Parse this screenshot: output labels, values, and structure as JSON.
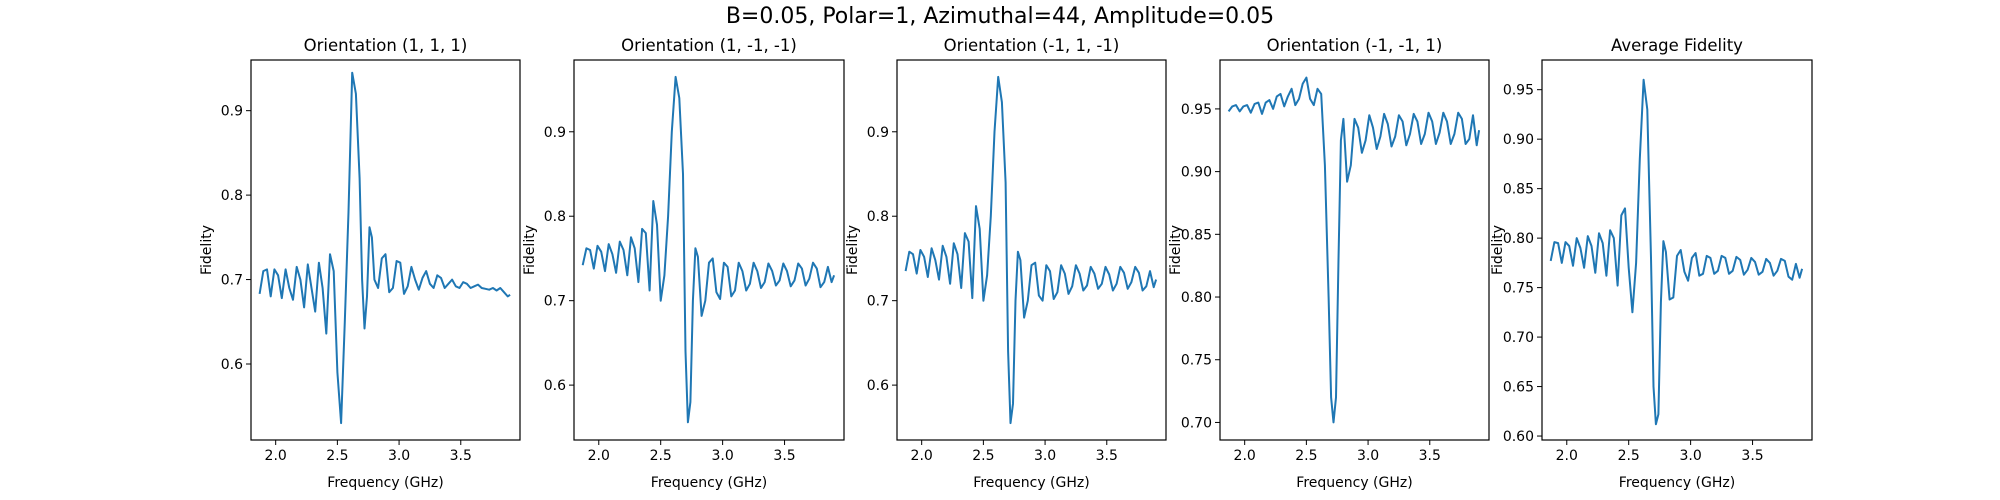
{
  "figure": {
    "title": "B=0.05, Polar=1, Azimuthal=44, Amplitude=0.05"
  },
  "chart_data": [
    {
      "type": "line",
      "title": "Orientation (1, 1, 1)",
      "xlabel": "Frequency (GHz)",
      "ylabel": "Fidelity",
      "xlim": [
        1.8,
        3.98
      ],
      "ylim": [
        0.51,
        0.96
      ],
      "xticks": [
        "2.0",
        "2.5",
        "3.0",
        "3.5"
      ],
      "yticks": [
        "0.6",
        "0.7",
        "0.8",
        "0.9"
      ],
      "color": "#1f77b4",
      "series": [
        {
          "x": [
            1.87,
            1.9,
            1.93,
            1.96,
            1.99,
            2.02,
            2.05,
            2.08,
            2.11,
            2.14,
            2.17,
            2.2,
            2.23,
            2.26,
            2.29,
            2.32,
            2.35,
            2.38,
            2.41,
            2.44,
            2.47,
            2.5,
            2.53,
            2.56,
            2.59,
            2.62,
            2.65,
            2.68,
            2.7,
            2.72,
            2.74,
            2.76,
            2.78,
            2.8,
            2.83,
            2.86,
            2.89,
            2.92,
            2.95,
            2.98,
            3.01,
            3.04,
            3.07,
            3.1,
            3.13,
            3.16,
            3.19,
            3.22,
            3.25,
            3.28,
            3.31,
            3.34,
            3.37,
            3.4,
            3.43,
            3.46,
            3.49,
            3.52,
            3.55,
            3.58,
            3.61,
            3.64,
            3.67,
            3.7,
            3.73,
            3.76,
            3.79,
            3.82,
            3.85,
            3.88,
            3.9
          ],
          "y": [
            0.683,
            0.71,
            0.712,
            0.68,
            0.712,
            0.705,
            0.678,
            0.712,
            0.69,
            0.676,
            0.715,
            0.7,
            0.667,
            0.718,
            0.69,
            0.662,
            0.72,
            0.69,
            0.636,
            0.73,
            0.71,
            0.59,
            0.53,
            0.65,
            0.78,
            0.945,
            0.92,
            0.82,
            0.7,
            0.642,
            0.68,
            0.762,
            0.75,
            0.7,
            0.69,
            0.725,
            0.73,
            0.685,
            0.69,
            0.722,
            0.72,
            0.683,
            0.692,
            0.715,
            0.7,
            0.688,
            0.702,
            0.71,
            0.695,
            0.69,
            0.705,
            0.702,
            0.69,
            0.695,
            0.7,
            0.692,
            0.69,
            0.697,
            0.695,
            0.69,
            0.692,
            0.694,
            0.69,
            0.689,
            0.688,
            0.69,
            0.687,
            0.69,
            0.685,
            0.68,
            0.682
          ]
        }
      ]
    },
    {
      "type": "line",
      "title": "Orientation (1, -1, -1)",
      "xlabel": "Frequency (GHz)",
      "ylabel": "Fidelity",
      "xlim": [
        1.8,
        3.98
      ],
      "ylim": [
        0.535,
        0.985
      ],
      "xticks": [
        "2.0",
        "2.5",
        "3.0",
        "3.5"
      ],
      "yticks": [
        "0.6",
        "0.7",
        "0.8",
        "0.9"
      ],
      "color": "#1f77b4",
      "series": [
        {
          "x": [
            1.87,
            1.9,
            1.93,
            1.96,
            1.99,
            2.02,
            2.05,
            2.08,
            2.11,
            2.14,
            2.17,
            2.2,
            2.23,
            2.26,
            2.29,
            2.32,
            2.35,
            2.38,
            2.41,
            2.44,
            2.47,
            2.5,
            2.53,
            2.56,
            2.59,
            2.62,
            2.65,
            2.68,
            2.7,
            2.72,
            2.74,
            2.76,
            2.78,
            2.8,
            2.83,
            2.86,
            2.89,
            2.92,
            2.95,
            2.98,
            3.01,
            3.04,
            3.07,
            3.1,
            3.13,
            3.16,
            3.19,
            3.22,
            3.25,
            3.28,
            3.31,
            3.34,
            3.37,
            3.4,
            3.43,
            3.46,
            3.49,
            3.52,
            3.55,
            3.58,
            3.61,
            3.64,
            3.67,
            3.7,
            3.73,
            3.76,
            3.79,
            3.82,
            3.85,
            3.88,
            3.9
          ],
          "y": [
            0.742,
            0.762,
            0.76,
            0.738,
            0.765,
            0.758,
            0.735,
            0.767,
            0.755,
            0.733,
            0.77,
            0.76,
            0.73,
            0.775,
            0.762,
            0.722,
            0.785,
            0.78,
            0.712,
            0.818,
            0.79,
            0.7,
            0.73,
            0.8,
            0.9,
            0.965,
            0.94,
            0.85,
            0.64,
            0.556,
            0.58,
            0.7,
            0.762,
            0.752,
            0.682,
            0.7,
            0.745,
            0.75,
            0.71,
            0.702,
            0.745,
            0.74,
            0.705,
            0.712,
            0.745,
            0.735,
            0.712,
            0.72,
            0.745,
            0.735,
            0.715,
            0.722,
            0.744,
            0.735,
            0.718,
            0.724,
            0.744,
            0.735,
            0.717,
            0.724,
            0.744,
            0.738,
            0.718,
            0.726,
            0.745,
            0.738,
            0.716,
            0.722,
            0.74,
            0.722,
            0.73
          ]
        }
      ]
    },
    {
      "type": "line",
      "title": "Orientation (-1, 1, -1)",
      "xlabel": "Frequency (GHz)",
      "ylabel": "Fidelity",
      "xlim": [
        1.8,
        3.98
      ],
      "ylim": [
        0.535,
        0.985
      ],
      "xticks": [
        "2.0",
        "2.5",
        "3.0",
        "3.5"
      ],
      "yticks": [
        "0.6",
        "0.7",
        "0.8",
        "0.9"
      ],
      "color": "#1f77b4",
      "series": [
        {
          "x": [
            1.87,
            1.9,
            1.93,
            1.96,
            1.99,
            2.02,
            2.05,
            2.08,
            2.11,
            2.14,
            2.17,
            2.2,
            2.23,
            2.26,
            2.29,
            2.32,
            2.35,
            2.38,
            2.41,
            2.44,
            2.47,
            2.5,
            2.53,
            2.56,
            2.59,
            2.62,
            2.65,
            2.68,
            2.7,
            2.72,
            2.74,
            2.76,
            2.78,
            2.8,
            2.83,
            2.86,
            2.89,
            2.92,
            2.95,
            2.98,
            3.01,
            3.04,
            3.07,
            3.1,
            3.13,
            3.16,
            3.19,
            3.22,
            3.25,
            3.28,
            3.31,
            3.34,
            3.37,
            3.4,
            3.43,
            3.46,
            3.49,
            3.52,
            3.55,
            3.58,
            3.61,
            3.64,
            3.67,
            3.7,
            3.73,
            3.76,
            3.79,
            3.82,
            3.85,
            3.88,
            3.9
          ],
          "y": [
            0.735,
            0.758,
            0.755,
            0.732,
            0.76,
            0.752,
            0.728,
            0.762,
            0.748,
            0.725,
            0.765,
            0.752,
            0.72,
            0.768,
            0.755,
            0.715,
            0.78,
            0.77,
            0.703,
            0.812,
            0.785,
            0.7,
            0.73,
            0.8,
            0.9,
            0.965,
            0.935,
            0.84,
            0.64,
            0.555,
            0.578,
            0.7,
            0.758,
            0.748,
            0.68,
            0.7,
            0.742,
            0.745,
            0.706,
            0.7,
            0.742,
            0.735,
            0.702,
            0.71,
            0.742,
            0.732,
            0.708,
            0.717,
            0.742,
            0.732,
            0.712,
            0.718,
            0.74,
            0.732,
            0.714,
            0.72,
            0.74,
            0.731,
            0.712,
            0.72,
            0.74,
            0.733,
            0.714,
            0.722,
            0.74,
            0.733,
            0.712,
            0.717,
            0.735,
            0.716,
            0.725
          ]
        }
      ]
    },
    {
      "type": "line",
      "title": "Orientation (-1, -1, 1)",
      "xlabel": "Frequency (GHz)",
      "ylabel": "Fidelity",
      "xlim": [
        1.8,
        3.98
      ],
      "ylim": [
        0.686,
        0.989
      ],
      "xticks": [
        "2.0",
        "2.5",
        "3.0",
        "3.5"
      ],
      "yticks": [
        "0.70",
        "0.75",
        "0.80",
        "0.85",
        "0.90",
        "0.95"
      ],
      "color": "#1f77b4",
      "series": [
        {
          "x": [
            1.87,
            1.9,
            1.93,
            1.96,
            1.99,
            2.02,
            2.05,
            2.08,
            2.11,
            2.14,
            2.17,
            2.2,
            2.23,
            2.26,
            2.29,
            2.32,
            2.35,
            2.38,
            2.41,
            2.44,
            2.47,
            2.5,
            2.53,
            2.56,
            2.59,
            2.62,
            2.65,
            2.68,
            2.7,
            2.72,
            2.74,
            2.76,
            2.78,
            2.8,
            2.83,
            2.86,
            2.89,
            2.92,
            2.95,
            2.98,
            3.01,
            3.04,
            3.07,
            3.1,
            3.13,
            3.16,
            3.19,
            3.22,
            3.25,
            3.28,
            3.31,
            3.34,
            3.37,
            3.4,
            3.43,
            3.46,
            3.49,
            3.52,
            3.55,
            3.58,
            3.61,
            3.64,
            3.67,
            3.7,
            3.73,
            3.76,
            3.79,
            3.82,
            3.85,
            3.88,
            3.9
          ],
          "y": [
            0.948,
            0.952,
            0.953,
            0.948,
            0.952,
            0.953,
            0.947,
            0.954,
            0.955,
            0.946,
            0.955,
            0.957,
            0.95,
            0.96,
            0.962,
            0.952,
            0.96,
            0.966,
            0.953,
            0.958,
            0.97,
            0.975,
            0.958,
            0.953,
            0.966,
            0.962,
            0.905,
            0.8,
            0.72,
            0.7,
            0.72,
            0.83,
            0.925,
            0.942,
            0.892,
            0.905,
            0.942,
            0.935,
            0.915,
            0.925,
            0.945,
            0.935,
            0.918,
            0.928,
            0.946,
            0.938,
            0.92,
            0.928,
            0.945,
            0.94,
            0.921,
            0.93,
            0.946,
            0.94,
            0.922,
            0.93,
            0.947,
            0.94,
            0.922,
            0.931,
            0.947,
            0.94,
            0.922,
            0.93,
            0.947,
            0.942,
            0.922,
            0.926,
            0.945,
            0.921,
            0.933
          ]
        }
      ]
    },
    {
      "type": "line",
      "title": "Average Fidelity",
      "xlabel": "Frequency (GHz)",
      "ylabel": "Fidelity",
      "xlim": [
        1.8,
        3.98
      ],
      "ylim": [
        0.596,
        0.98
      ],
      "xticks": [
        "2.0",
        "2.5",
        "3.0",
        "3.5"
      ],
      "yticks": [
        "0.60",
        "0.65",
        "0.70",
        "0.75",
        "0.80",
        "0.85",
        "0.90",
        "0.95"
      ],
      "color": "#1f77b4",
      "series": [
        {
          "x": [
            1.87,
            1.9,
            1.93,
            1.96,
            1.99,
            2.02,
            2.05,
            2.08,
            2.11,
            2.14,
            2.17,
            2.2,
            2.23,
            2.26,
            2.29,
            2.32,
            2.35,
            2.38,
            2.41,
            2.44,
            2.47,
            2.5,
            2.53,
            2.56,
            2.59,
            2.62,
            2.65,
            2.68,
            2.7,
            2.72,
            2.74,
            2.76,
            2.78,
            2.8,
            2.83,
            2.86,
            2.89,
            2.92,
            2.95,
            2.98,
            3.01,
            3.04,
            3.07,
            3.1,
            3.13,
            3.16,
            3.19,
            3.22,
            3.25,
            3.28,
            3.31,
            3.34,
            3.37,
            3.4,
            3.43,
            3.46,
            3.49,
            3.52,
            3.55,
            3.58,
            3.61,
            3.64,
            3.67,
            3.7,
            3.73,
            3.76,
            3.79,
            3.82,
            3.85,
            3.88,
            3.9
          ],
          "y": [
            0.777,
            0.796,
            0.795,
            0.775,
            0.796,
            0.792,
            0.772,
            0.8,
            0.79,
            0.77,
            0.802,
            0.792,
            0.765,
            0.805,
            0.795,
            0.762,
            0.808,
            0.8,
            0.752,
            0.823,
            0.83,
            0.77,
            0.725,
            0.775,
            0.88,
            0.96,
            0.93,
            0.78,
            0.65,
            0.612,
            0.622,
            0.735,
            0.797,
            0.786,
            0.738,
            0.74,
            0.782,
            0.788,
            0.766,
            0.757,
            0.78,
            0.785,
            0.762,
            0.764,
            0.782,
            0.78,
            0.764,
            0.767,
            0.782,
            0.78,
            0.764,
            0.767,
            0.781,
            0.778,
            0.763,
            0.768,
            0.78,
            0.776,
            0.763,
            0.766,
            0.779,
            0.775,
            0.762,
            0.767,
            0.779,
            0.777,
            0.761,
            0.758,
            0.774,
            0.76,
            0.769
          ]
        }
      ]
    }
  ]
}
